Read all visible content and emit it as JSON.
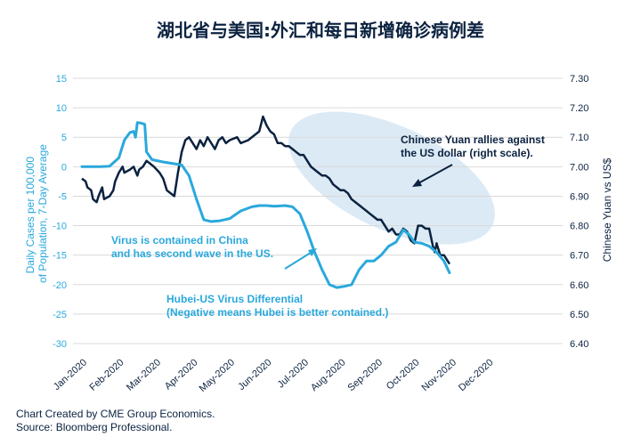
{
  "title": "湖北省与美国:外汇和每日新增确诊病例差",
  "footer": {
    "line1": "Chart Created by CME Group Economics.",
    "line2": "Source: Bloomberg Professional."
  },
  "colors": {
    "virus": "#2aa8dc",
    "yuan": "#0b2240",
    "ellipse": "#d6e6f3",
    "grid": "#d9d9d9",
    "text": "#0b2240"
  },
  "chart_data": {
    "type": "line",
    "x_tick_labels": [
      "Jan-2020",
      "Feb-2020",
      "Mar-2020",
      "Apr-2020",
      "May-2020",
      "Jun-2020",
      "Jul-2020",
      "Aug-2020",
      "Sep-2020",
      "Oct-2020",
      "Nov-2020",
      "Dec-2020"
    ],
    "y_left": {
      "label_line1": "Daily Cases per 100,000",
      "label_line2": "of Population, 7-Day Average",
      "range": [
        -30,
        15
      ],
      "ticks": [
        "15",
        "10",
        "5",
        "0",
        "-5",
        "-10",
        "-15",
        "-20",
        "-25",
        "-30"
      ]
    },
    "y_right": {
      "label": "Chinese Yuan vs US$",
      "range": [
        6.4,
        7.3
      ],
      "ticks": [
        "7.30",
        "7.20",
        "7.10",
        "7.00",
        "6.90",
        "6.80",
        "6.70",
        "6.60",
        "6.50",
        "6.40"
      ]
    },
    "grid": "horizontal",
    "series": [
      {
        "axis": "left",
        "points": [
          [
            0,
            0
          ],
          [
            0.5,
            0
          ],
          [
            0.75,
            0.1
          ],
          [
            1.0,
            1.5
          ],
          [
            1.15,
            4.5
          ],
          [
            1.3,
            5.8
          ],
          [
            1.4,
            6.0
          ],
          [
            1.45,
            5.0
          ],
          [
            1.5,
            7.5
          ],
          [
            1.6,
            7.4
          ],
          [
            1.7,
            7.2
          ],
          [
            1.75,
            2.5
          ],
          [
            1.9,
            1.2
          ],
          [
            2.2,
            0.8
          ],
          [
            2.5,
            0.5
          ],
          [
            2.7,
            0.3
          ],
          [
            2.9,
            -1.5
          ],
          [
            3.1,
            -5.5
          ],
          [
            3.3,
            -9.0
          ],
          [
            3.5,
            -9.3
          ],
          [
            3.7,
            -9.2
          ],
          [
            4.0,
            -8.8
          ],
          [
            4.3,
            -7.5
          ],
          [
            4.6,
            -6.8
          ],
          [
            4.8,
            -6.6
          ],
          [
            5.0,
            -6.6
          ],
          [
            5.2,
            -6.7
          ],
          [
            5.5,
            -6.6
          ],
          [
            5.7,
            -6.8
          ],
          [
            5.9,
            -8.0
          ],
          [
            6.1,
            -11.0
          ],
          [
            6.3,
            -14.5
          ],
          [
            6.5,
            -17.5
          ],
          [
            6.7,
            -20.0
          ],
          [
            6.9,
            -20.5
          ],
          [
            7.1,
            -20.3
          ],
          [
            7.3,
            -20.0
          ],
          [
            7.5,
            -17.5
          ],
          [
            7.7,
            -16.0
          ],
          [
            7.9,
            -16.0
          ],
          [
            8.1,
            -15.0
          ],
          [
            8.3,
            -13.5
          ],
          [
            8.5,
            -12.8
          ],
          [
            8.7,
            -10.7
          ],
          [
            8.85,
            -11.5
          ],
          [
            9.0,
            -12.8
          ],
          [
            9.2,
            -13.0
          ],
          [
            9.4,
            -13.5
          ],
          [
            9.6,
            -14.5
          ],
          [
            9.8,
            -16.0
          ],
          [
            9.95,
            -18.0
          ]
        ]
      },
      {
        "axis": "right",
        "points": [
          [
            0,
            6.96
          ],
          [
            0.1,
            6.95
          ],
          [
            0.15,
            6.93
          ],
          [
            0.25,
            6.92
          ],
          [
            0.3,
            6.89
          ],
          [
            0.4,
            6.88
          ],
          [
            0.45,
            6.9
          ],
          [
            0.55,
            6.93
          ],
          [
            0.6,
            6.89
          ],
          [
            0.75,
            6.9
          ],
          [
            0.85,
            6.92
          ],
          [
            0.9,
            6.95
          ],
          [
            1.0,
            6.98
          ],
          [
            1.1,
            7.0
          ],
          [
            1.15,
            6.98
          ],
          [
            1.3,
            6.99
          ],
          [
            1.4,
            7.0
          ],
          [
            1.5,
            6.97
          ],
          [
            1.55,
            6.99
          ],
          [
            1.65,
            7.0
          ],
          [
            1.75,
            7.02
          ],
          [
            1.85,
            7.01
          ],
          [
            1.95,
            7.0
          ],
          [
            2.1,
            6.98
          ],
          [
            2.2,
            6.96
          ],
          [
            2.3,
            6.92
          ],
          [
            2.4,
            6.91
          ],
          [
            2.5,
            6.9
          ],
          [
            2.6,
            6.98
          ],
          [
            2.7,
            7.05
          ],
          [
            2.8,
            7.09
          ],
          [
            2.9,
            7.1
          ],
          [
            3.0,
            7.08
          ],
          [
            3.1,
            7.06
          ],
          [
            3.2,
            7.09
          ],
          [
            3.3,
            7.07
          ],
          [
            3.4,
            7.1
          ],
          [
            3.5,
            7.08
          ],
          [
            3.6,
            7.06
          ],
          [
            3.7,
            7.09
          ],
          [
            3.8,
            7.1
          ],
          [
            3.9,
            7.08
          ],
          [
            4.0,
            7.09
          ],
          [
            4.2,
            7.1
          ],
          [
            4.3,
            7.08
          ],
          [
            4.5,
            7.09
          ],
          [
            4.7,
            7.11
          ],
          [
            4.8,
            7.12
          ],
          [
            4.9,
            7.17
          ],
          [
            5.0,
            7.14
          ],
          [
            5.1,
            7.12
          ],
          [
            5.2,
            7.11
          ],
          [
            5.3,
            7.08
          ],
          [
            5.4,
            7.08
          ],
          [
            5.5,
            7.07
          ],
          [
            5.6,
            7.07
          ],
          [
            5.7,
            7.06
          ],
          [
            5.8,
            7.05
          ],
          [
            5.9,
            7.04
          ],
          [
            6.0,
            7.04
          ],
          [
            6.1,
            7.02
          ],
          [
            6.2,
            7.0
          ],
          [
            6.3,
            6.99
          ],
          [
            6.4,
            6.98
          ],
          [
            6.5,
            6.97
          ],
          [
            6.6,
            6.97
          ],
          [
            6.7,
            6.96
          ],
          [
            6.8,
            6.94
          ],
          [
            6.9,
            6.93
          ],
          [
            7.0,
            6.92
          ],
          [
            7.1,
            6.92
          ],
          [
            7.2,
            6.91
          ],
          [
            7.3,
            6.89
          ],
          [
            7.4,
            6.88
          ],
          [
            7.5,
            6.87
          ],
          [
            7.6,
            6.86
          ],
          [
            7.7,
            6.85
          ],
          [
            7.8,
            6.84
          ],
          [
            7.9,
            6.83
          ],
          [
            8.0,
            6.82
          ],
          [
            8.1,
            6.82
          ],
          [
            8.2,
            6.8
          ],
          [
            8.3,
            6.78
          ],
          [
            8.4,
            6.79
          ],
          [
            8.5,
            6.77
          ],
          [
            8.6,
            6.77
          ],
          [
            8.7,
            6.79
          ],
          [
            8.8,
            6.78
          ],
          [
            8.9,
            6.75
          ],
          [
            9.0,
            6.74
          ],
          [
            9.1,
            6.8
          ],
          [
            9.2,
            6.8
          ],
          [
            9.3,
            6.79
          ],
          [
            9.4,
            6.79
          ],
          [
            9.5,
            6.73
          ],
          [
            9.55,
            6.71
          ],
          [
            9.6,
            6.74
          ],
          [
            9.7,
            6.7
          ],
          [
            9.8,
            6.7
          ],
          [
            9.9,
            6.68
          ],
          [
            9.95,
            6.67
          ]
        ]
      }
    ],
    "annotations": [
      {
        "id": "yuan-note",
        "line1": "Chinese Yuan rallies against",
        "line2": "the US dollar (right scale).",
        "color": "#0b2240"
      },
      {
        "id": "virus-note",
        "line1": "Virus is contained in China",
        "line2": "and has second wave in the US.",
        "color": "#2aa8dc"
      },
      {
        "id": "hubei-note",
        "line1": "Hubei-US Virus Differential",
        "line2": "(Negative means Hubei is better contained.)",
        "color": "#2aa8dc"
      }
    ]
  }
}
